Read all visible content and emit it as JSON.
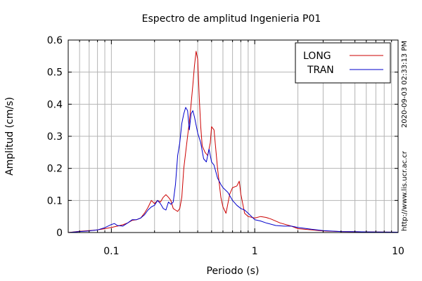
{
  "chart_data": {
    "type": "line",
    "title": "Espectro de amplitud Ingenieria P01",
    "xlabel": "Periodo (s)",
    "ylabel": "Amplitud (cm/s)",
    "x_scale": "log",
    "xlim": [
      0.05,
      10
    ],
    "ylim": [
      0,
      0.6
    ],
    "x_ticks": [
      {
        "value": 0.1,
        "label": "0.1"
      },
      {
        "value": 1,
        "label": "1"
      },
      {
        "value": 10,
        "label": "10"
      }
    ],
    "y_ticks": [
      {
        "value": 0,
        "label": "0"
      },
      {
        "value": 0.1,
        "label": "0.1"
      },
      {
        "value": 0.2,
        "label": "0.2"
      },
      {
        "value": 0.3,
        "label": "0.3"
      },
      {
        "value": 0.4,
        "label": "0.4"
      },
      {
        "value": 0.5,
        "label": "0.5"
      },
      {
        "value": 0.6,
        "label": "0.6"
      }
    ],
    "grid": true,
    "legend_position": "top-right",
    "side_label_timestamp": "2020-09-03 02:33:13 PM",
    "side_label_url": "http://www.lis.ucr.ac.cr",
    "series": [
      {
        "name": "LONG",
        "color": "#cc0000",
        "points": [
          [
            0.05,
            0.0
          ],
          [
            0.06,
            0.004
          ],
          [
            0.07,
            0.006
          ],
          [
            0.08,
            0.008
          ],
          [
            0.09,
            0.012
          ],
          [
            0.1,
            0.016
          ],
          [
            0.11,
            0.02
          ],
          [
            0.12,
            0.024
          ],
          [
            0.13,
            0.03
          ],
          [
            0.14,
            0.038
          ],
          [
            0.15,
            0.04
          ],
          [
            0.16,
            0.045
          ],
          [
            0.17,
            0.06
          ],
          [
            0.18,
            0.078
          ],
          [
            0.19,
            0.1
          ],
          [
            0.2,
            0.09
          ],
          [
            0.21,
            0.1
          ],
          [
            0.22,
            0.095
          ],
          [
            0.23,
            0.11
          ],
          [
            0.24,
            0.118
          ],
          [
            0.25,
            0.11
          ],
          [
            0.26,
            0.1
          ],
          [
            0.27,
            0.075
          ],
          [
            0.28,
            0.07
          ],
          [
            0.29,
            0.066
          ],
          [
            0.3,
            0.075
          ],
          [
            0.31,
            0.11
          ],
          [
            0.32,
            0.2
          ],
          [
            0.33,
            0.25
          ],
          [
            0.34,
            0.3
          ],
          [
            0.35,
            0.345
          ],
          [
            0.36,
            0.4
          ],
          [
            0.37,
            0.46
          ],
          [
            0.38,
            0.52
          ],
          [
            0.39,
            0.565
          ],
          [
            0.4,
            0.54
          ],
          [
            0.41,
            0.42
          ],
          [
            0.42,
            0.33
          ],
          [
            0.43,
            0.27
          ],
          [
            0.45,
            0.25
          ],
          [
            0.47,
            0.24
          ],
          [
            0.49,
            0.28
          ],
          [
            0.5,
            0.33
          ],
          [
            0.52,
            0.32
          ],
          [
            0.55,
            0.2
          ],
          [
            0.58,
            0.11
          ],
          [
            0.6,
            0.08
          ],
          [
            0.63,
            0.06
          ],
          [
            0.67,
            0.12
          ],
          [
            0.7,
            0.14
          ],
          [
            0.75,
            0.145
          ],
          [
            0.78,
            0.16
          ],
          [
            0.8,
            0.12
          ],
          [
            0.85,
            0.06
          ],
          [
            0.9,
            0.05
          ],
          [
            1.0,
            0.045
          ],
          [
            1.1,
            0.05
          ],
          [
            1.2,
            0.047
          ],
          [
            1.3,
            0.042
          ],
          [
            1.5,
            0.03
          ],
          [
            1.8,
            0.02
          ],
          [
            2.0,
            0.012
          ],
          [
            2.5,
            0.008
          ],
          [
            3.0,
            0.005
          ],
          [
            4.0,
            0.003
          ],
          [
            6.0,
            0.002
          ],
          [
            10.0,
            0.001
          ]
        ]
      },
      {
        "name": "TRAN",
        "color": "#0000cc",
        "points": [
          [
            0.05,
            0.0
          ],
          [
            0.06,
            0.003
          ],
          [
            0.07,
            0.005
          ],
          [
            0.08,
            0.008
          ],
          [
            0.09,
            0.015
          ],
          [
            0.1,
            0.025
          ],
          [
            0.105,
            0.028
          ],
          [
            0.11,
            0.022
          ],
          [
            0.12,
            0.02
          ],
          [
            0.13,
            0.03
          ],
          [
            0.14,
            0.04
          ],
          [
            0.15,
            0.04
          ],
          [
            0.16,
            0.045
          ],
          [
            0.17,
            0.055
          ],
          [
            0.18,
            0.07
          ],
          [
            0.19,
            0.08
          ],
          [
            0.2,
            0.085
          ],
          [
            0.21,
            0.1
          ],
          [
            0.22,
            0.09
          ],
          [
            0.23,
            0.075
          ],
          [
            0.24,
            0.07
          ],
          [
            0.25,
            0.095
          ],
          [
            0.26,
            0.088
          ],
          [
            0.27,
            0.095
          ],
          [
            0.28,
            0.15
          ],
          [
            0.29,
            0.24
          ],
          [
            0.3,
            0.28
          ],
          [
            0.31,
            0.34
          ],
          [
            0.32,
            0.37
          ],
          [
            0.33,
            0.39
          ],
          [
            0.34,
            0.38
          ],
          [
            0.35,
            0.32
          ],
          [
            0.36,
            0.37
          ],
          [
            0.37,
            0.38
          ],
          [
            0.38,
            0.36
          ],
          [
            0.4,
            0.31
          ],
          [
            0.42,
            0.28
          ],
          [
            0.44,
            0.23
          ],
          [
            0.46,
            0.22
          ],
          [
            0.48,
            0.26
          ],
          [
            0.5,
            0.22
          ],
          [
            0.52,
            0.21
          ],
          [
            0.55,
            0.17
          ],
          [
            0.58,
            0.15
          ],
          [
            0.6,
            0.14
          ],
          [
            0.65,
            0.125
          ],
          [
            0.7,
            0.1
          ],
          [
            0.75,
            0.085
          ],
          [
            0.8,
            0.075
          ],
          [
            0.85,
            0.07
          ],
          [
            0.9,
            0.06
          ],
          [
            1.0,
            0.04
          ],
          [
            1.1,
            0.036
          ],
          [
            1.2,
            0.03
          ],
          [
            1.4,
            0.022
          ],
          [
            1.6,
            0.02
          ],
          [
            1.8,
            0.02
          ],
          [
            2.0,
            0.016
          ],
          [
            2.5,
            0.01
          ],
          [
            3.0,
            0.006
          ],
          [
            4.0,
            0.003
          ],
          [
            6.0,
            0.002
          ],
          [
            10.0,
            0.001
          ]
        ]
      }
    ]
  }
}
